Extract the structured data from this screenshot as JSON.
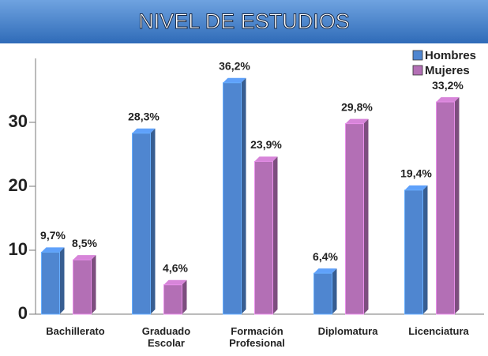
{
  "chart_data": {
    "type": "bar",
    "title": "NIVEL DE ESTUDIOS",
    "categories": [
      "Bachillerato",
      "Graduado Escolar",
      "Formación Profesional",
      "Diplomatura",
      "Licenciatura"
    ],
    "series": [
      {
        "name": "Hombres",
        "color": "#4f86d0",
        "values": [
          9.7,
          28.3,
          36.2,
          6.4,
          19.4
        ],
        "value_labels": [
          "9,7%",
          "28,3%",
          "36,2%",
          "6,4%",
          "19,4%"
        ]
      },
      {
        "name": "Mujeres",
        "color": "#b36fb5",
        "values": [
          8.5,
          4.6,
          23.9,
          29.8,
          33.2
        ],
        "value_labels": [
          "8,5%",
          "4,6%",
          "23,9%",
          "29,8%",
          "33,2%"
        ]
      }
    ],
    "ylim": [
      0,
      40
    ],
    "yticks": [
      0,
      10,
      20,
      30
    ],
    "legend": "top-right"
  }
}
